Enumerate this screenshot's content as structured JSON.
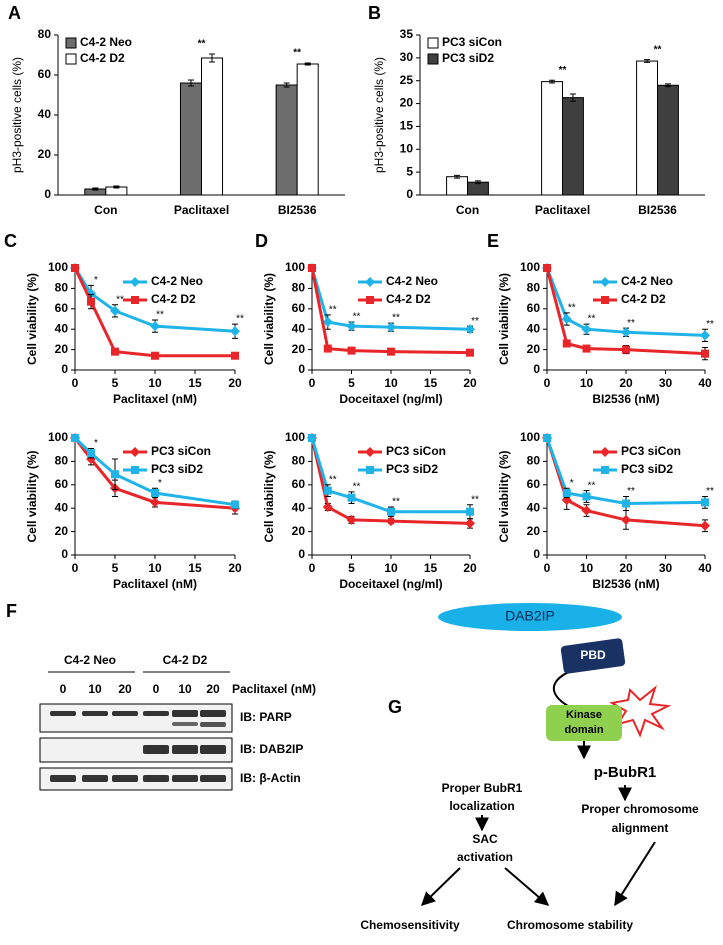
{
  "chart_data": [
    {
      "type": "bar",
      "panel": "A",
      "y_label": "pH3-positive cells (%)",
      "categories": [
        "Con",
        "Paclitaxel",
        "BI2536"
      ],
      "legend": "upper left",
      "series": [
        {
          "name": "C4-2 Neo",
          "color": "#6d6d6d",
          "values": [
            3,
            56,
            55
          ],
          "errors": [
            0.5,
            1.5,
            1
          ]
        },
        {
          "name": "C4-2 D2",
          "color": "#ffffff",
          "values": [
            4,
            68.5,
            65.5
          ],
          "errors": [
            0.5,
            2,
            0.5
          ]
        }
      ],
      "significance": [
        null,
        "**",
        "**"
      ],
      "ylim": [
        0,
        80
      ],
      "yticks": [
        0,
        20,
        40,
        60,
        80
      ]
    },
    {
      "type": "bar",
      "panel": "B",
      "y_label": "pH3-positive cells (%)",
      "categories": [
        "Con",
        "Paclitaxel",
        "BI2536"
      ],
      "legend": "upper left",
      "series": [
        {
          "name": "PC3 siCon",
          "color": "#ffffff",
          "values": [
            4,
            24.8,
            29.3
          ],
          "errors": [
            0.3,
            0.3,
            0.3
          ]
        },
        {
          "name": "PC3 siD2",
          "color": "#404040",
          "values": [
            2.8,
            21.3,
            24
          ],
          "errors": [
            0.3,
            0.8,
            0.3
          ]
        }
      ],
      "significance": [
        null,
        "**",
        "**"
      ],
      "ylim": [
        0,
        35
      ],
      "yticks": [
        0,
        5,
        10,
        15,
        20,
        25,
        30,
        35
      ]
    },
    {
      "type": "line",
      "panel": "C",
      "x_label": "Paclitaxel (nM)",
      "y_label": "Cell viability (%)",
      "legend": "upper right",
      "x": [
        0,
        2,
        5,
        10,
        20
      ],
      "series": [
        {
          "name": "C4-2 Neo",
          "color": "#1fb3e8",
          "marker": "diamond",
          "values": [
            100,
            75,
            58,
            43,
            38
          ],
          "errors": [
            0,
            8,
            6,
            6,
            7
          ]
        },
        {
          "name": "C4-2 D2",
          "color": "#e8262a",
          "marker": "square",
          "values": [
            100,
            67,
            18,
            14,
            14
          ],
          "errors": [
            0,
            7,
            3,
            3,
            2
          ]
        }
      ],
      "significance": [
        null,
        "*",
        "**",
        "**",
        "**"
      ],
      "xlim": [
        0,
        20
      ],
      "xticks": [
        0,
        5,
        10,
        15,
        20
      ],
      "ylim": [
        0,
        100
      ],
      "yticks": [
        0,
        20,
        40,
        60,
        80,
        100
      ]
    },
    {
      "type": "line",
      "panel": "D",
      "x_label": "Doceitaxel (ng/ml)",
      "y_label": "Cell viability (%)",
      "legend": "upper right",
      "x": [
        0,
        2,
        5,
        10,
        20
      ],
      "series": [
        {
          "name": "C4-2 Neo",
          "color": "#1fb3e8",
          "marker": "diamond",
          "values": [
            100,
            47,
            43,
            42,
            40
          ],
          "errors": [
            0,
            7,
            4,
            4,
            3
          ]
        },
        {
          "name": "C4-2 D2",
          "color": "#e8262a",
          "marker": "square",
          "values": [
            100,
            21,
            19,
            18,
            17
          ],
          "errors": [
            0,
            2,
            1,
            1,
            1
          ]
        }
      ],
      "significance": [
        null,
        "**",
        "**",
        "**",
        "**"
      ],
      "xlim": [
        0,
        20
      ],
      "xticks": [
        0,
        5,
        10,
        15,
        20
      ],
      "ylim": [
        0,
        100
      ],
      "yticks": [
        0,
        20,
        40,
        60,
        80,
        100
      ]
    },
    {
      "type": "line",
      "panel": "E",
      "x_label": "BI2536 (nM)",
      "y_label": "Cell viability (%)",
      "legend": "upper right",
      "x": [
        0,
        5,
        10,
        20,
        40
      ],
      "series": [
        {
          "name": "C4-2 Neo",
          "color": "#1fb3e8",
          "marker": "diamond",
          "values": [
            100,
            50,
            40,
            37,
            34
          ],
          "errors": [
            0,
            6,
            5,
            4,
            6
          ]
        },
        {
          "name": "C4-2 D2",
          "color": "#e8262a",
          "marker": "square",
          "values": [
            100,
            26,
            21,
            20,
            16
          ],
          "errors": [
            0,
            2,
            3,
            4,
            6
          ]
        }
      ],
      "significance": [
        null,
        "**",
        "**",
        "**",
        "**"
      ],
      "xlim": [
        0,
        40
      ],
      "xticks": [
        0,
        10,
        20,
        30,
        40
      ],
      "ylim": [
        0,
        100
      ],
      "yticks": [
        0,
        20,
        40,
        60,
        80,
        100
      ]
    },
    {
      "type": "line",
      "x_label": "Paclitaxel (nM)",
      "y_label": "Cell viability (%)",
      "legend": "upper right",
      "x": [
        0,
        2,
        5,
        10,
        20
      ],
      "series": [
        {
          "name": "PC3 siCon",
          "color": "#e8262a",
          "marker": "diamond",
          "values": [
            100,
            82,
            57,
            45,
            40
          ],
          "errors": [
            0,
            5,
            7,
            4,
            5
          ]
        },
        {
          "name": "PC3 siD2",
          "color": "#1fb3e8",
          "marker": "square",
          "values": [
            100,
            87,
            69,
            53,
            43
          ],
          "errors": [
            0,
            4,
            13,
            4,
            3
          ]
        }
      ],
      "significance": [
        null,
        "*",
        null,
        "*",
        null
      ],
      "xlim": [
        0,
        20
      ],
      "xticks": [
        0,
        5,
        10,
        15,
        20
      ],
      "ylim": [
        0,
        100
      ],
      "yticks": [
        0,
        20,
        40,
        60,
        80,
        100
      ]
    },
    {
      "type": "line",
      "x_label": "Doceitaxel (ng/ml)",
      "y_label": "Cell viability (%)",
      "legend": "upper right",
      "x": [
        0,
        2,
        5,
        10,
        20
      ],
      "series": [
        {
          "name": "PC3 siCon",
          "color": "#e8262a",
          "marker": "diamond",
          "values": [
            100,
            41,
            30,
            29,
            27
          ],
          "errors": [
            0,
            3,
            3,
            2,
            4
          ]
        },
        {
          "name": "PC3 siD2",
          "color": "#1fb3e8",
          "marker": "square",
          "values": [
            100,
            55,
            49,
            37,
            37
          ],
          "errors": [
            0,
            5,
            5,
            4,
            6
          ]
        }
      ],
      "significance": [
        null,
        "**",
        "**",
        "**",
        "**"
      ],
      "xlim": [
        0,
        20
      ],
      "xticks": [
        0,
        5,
        10,
        15,
        20
      ],
      "ylim": [
        0,
        100
      ],
      "yticks": [
        0,
        20,
        40,
        60,
        80,
        100
      ]
    },
    {
      "type": "line",
      "x_label": "BI2536 (nM)",
      "y_label": "Cell viability (%)",
      "legend": "upper right",
      "x": [
        0,
        5,
        10,
        20,
        40
      ],
      "series": [
        {
          "name": "PC3 siCon",
          "color": "#e8262a",
          "marker": "diamond",
          "values": [
            100,
            47,
            38,
            30,
            25
          ],
          "errors": [
            0,
            8,
            5,
            8,
            5
          ]
        },
        {
          "name": "PC3 siD2",
          "color": "#1fb3e8",
          "marker": "square",
          "values": [
            100,
            53,
            50,
            44,
            45
          ],
          "errors": [
            0,
            4,
            5,
            6,
            5
          ]
        }
      ],
      "significance": [
        null,
        "*",
        "**",
        "**",
        "**"
      ],
      "xlim": [
        0,
        40
      ],
      "xticks": [
        0,
        10,
        20,
        30,
        40
      ],
      "ylim": [
        0,
        100
      ],
      "yticks": [
        0,
        20,
        40,
        60,
        80,
        100
      ]
    }
  ],
  "blot": {
    "panel": "F",
    "groups": [
      "C4-2 Neo",
      "C4-2  D2"
    ],
    "doses": [
      "0",
      "10",
      "20",
      "0",
      "10",
      "20"
    ],
    "treatment": "Paclitaxel (nM)",
    "rows": [
      "IB: PARP",
      "IB: DAB2IP",
      "IB: β-Actin"
    ]
  },
  "diagram": {
    "panel": "G",
    "dab2ip": "DAB2IP",
    "pbd": "PBD",
    "kinase": [
      "Kinase",
      "domain"
    ],
    "pbubr1": "p-BubR1",
    "localization": [
      "Proper BubR1",
      "localization"
    ],
    "sac": [
      "SAC",
      "activation"
    ],
    "alignment": [
      "Proper chromosome",
      "alignment"
    ],
    "chemosensitivity": "Chemosensitivity",
    "stability": "Chromosome stability"
  }
}
